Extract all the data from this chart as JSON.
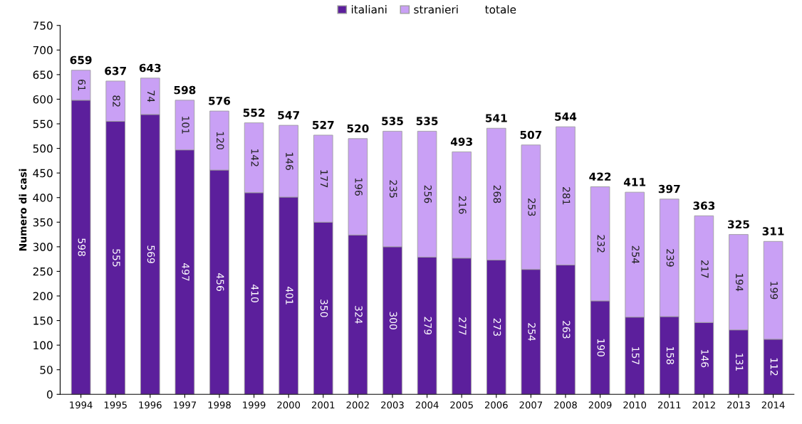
{
  "chart_data": {
    "type": "bar",
    "stacked": true,
    "ylabel": "Numero di casi",
    "categories": [
      "1994",
      "1995",
      "1996",
      "1997",
      "1998",
      "1999",
      "2000",
      "2001",
      "2002",
      "2003",
      "2004",
      "2005",
      "2006",
      "2007",
      "2008",
      "2009",
      "2010",
      "2011",
      "2012",
      "2013",
      "2014"
    ],
    "series": [
      {
        "name": "italiani",
        "color": "#5c1f9c",
        "values": [
          598,
          555,
          569,
          497,
          456,
          410,
          401,
          350,
          324,
          300,
          279,
          277,
          273,
          254,
          263,
          190,
          157,
          158,
          146,
          131,
          112
        ]
      },
      {
        "name": "stranieri",
        "color": "#c9a0f5",
        "values": [
          61,
          82,
          74,
          101,
          120,
          142,
          146,
          177,
          196,
          235,
          256,
          216,
          268,
          253,
          281,
          232,
          254,
          239,
          217,
          194,
          199
        ]
      }
    ],
    "totals": [
      "659",
      "637",
      "643",
      "598",
      "576",
      "552",
      "547",
      "527",
      "520",
      "535",
      "535",
      "493",
      "541",
      "507",
      "544",
      "422",
      "411",
      "397",
      "363",
      "325",
      "311"
    ],
    "annotations": [
      "totale"
    ],
    "data_labels": true,
    "ylim": [
      0,
      750
    ],
    "yticks": [
      0,
      50,
      100,
      150,
      200,
      250,
      300,
      350,
      400,
      450,
      500,
      550,
      600,
      650,
      700,
      750
    ],
    "grid": false,
    "legend": "top"
  }
}
